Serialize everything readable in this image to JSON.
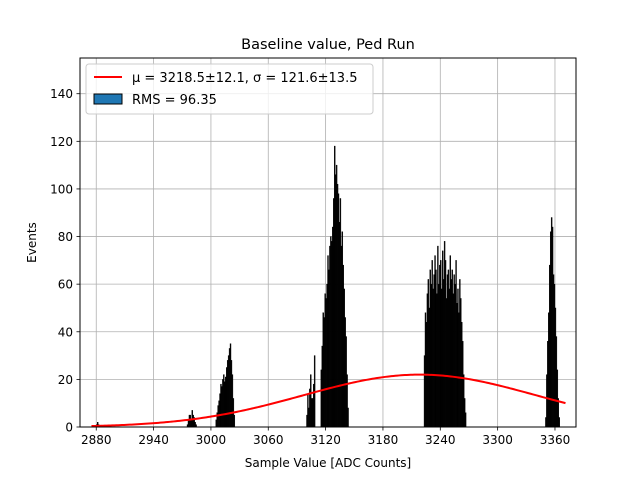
{
  "chart_data": {
    "type": "bar",
    "title": "Baseline value, Ped Run",
    "xlabel": "Sample Value [ADC Counts]",
    "ylabel": "Events",
    "xlim": [
      2863,
      3382
    ],
    "ylim": [
      0,
      155
    ],
    "xticks": [
      2880,
      2940,
      3000,
      3060,
      3120,
      3180,
      3240,
      3300,
      3360
    ],
    "yticks": [
      0,
      20,
      40,
      60,
      80,
      100,
      120,
      140
    ],
    "grid": true,
    "legend_position": "top-left",
    "colors": {
      "histogram": "#000000",
      "fit_line": "#ff0000",
      "legend_patch": "#1f77b4",
      "grid": "#b0b0b0"
    },
    "legend": {
      "fit_label": "μ = 3218.5±12.1, σ = 121.6±13.5",
      "hist_label": "RMS = 96.35"
    },
    "bin_width": 1,
    "histogram_groups": [
      {
        "start": 2880,
        "counts": [
          1,
          2,
          1
        ]
      },
      {
        "start": 2975,
        "counts": [
          1,
          3,
          5,
          5,
          3,
          7,
          5,
          4,
          2,
          1
        ]
      },
      {
        "start": 3005,
        "counts": [
          3,
          6,
          9,
          11,
          14,
          18,
          17,
          20,
          22,
          19,
          21,
          25,
          28,
          30,
          33,
          35,
          28,
          22,
          12,
          5
        ]
      },
      {
        "start": 3100,
        "counts": [
          5,
          14,
          8,
          16,
          22,
          12,
          12,
          18,
          30
        ]
      },
      {
        "start": 3115,
        "counts": [
          24,
          34,
          48,
          46,
          56,
          54,
          60,
          72,
          66,
          76,
          80,
          78,
          84,
          96,
          118,
          106,
          110,
          102,
          98,
          86,
          96,
          76,
          82,
          68,
          58,
          46,
          38,
          22,
          8
        ]
      },
      {
        "start": 3223,
        "counts": [
          30,
          48,
          44,
          56,
          62,
          50,
          66,
          60,
          70,
          58,
          64,
          72,
          66,
          56,
          76,
          60,
          68,
          70,
          58,
          74,
          62,
          78,
          70,
          54,
          64,
          66,
          58,
          72,
          62,
          66,
          56,
          64,
          60,
          70,
          52,
          58,
          48,
          62,
          54,
          44,
          36,
          22,
          12,
          6
        ]
      },
      {
        "start": 3350,
        "counts": [
          4,
          22,
          36,
          48,
          68,
          82,
          88,
          84,
          64,
          60,
          50,
          38,
          24,
          12,
          4
        ]
      }
    ],
    "fit_curve": {
      "mu": 3218.5,
      "sigma": 121.6,
      "amplitude": 22,
      "x_range": [
        2875,
        3372
      ]
    }
  }
}
